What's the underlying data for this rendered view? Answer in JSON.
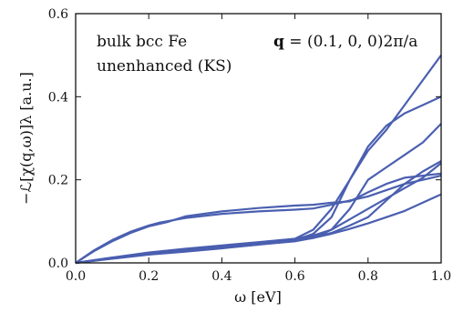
{
  "chart_data": {
    "type": "line",
    "xlabel": "ω [eV]",
    "ylabel": "−ℒ[χ(q,ω)]λ [a.u.]",
    "xlim": [
      0.0,
      1.0
    ],
    "ylim": [
      0.0,
      0.6
    ],
    "xticks": [
      "0.0",
      "0.2",
      "0.4",
      "0.6",
      "0.8",
      "1.0"
    ],
    "yticks": [
      "0.0",
      "0.2",
      "0.4",
      "0.6"
    ],
    "grid": false,
    "line_color": "#4a5fb0",
    "annotations": {
      "left_line1": "bulk bcc Fe",
      "left_line2": "unenhanced (KS)",
      "right_bold": "q",
      "right_rest": " = (0.1, 0, 0)2π/a"
    },
    "series": [
      {
        "x": [
          0.0,
          0.05,
          0.1,
          0.15,
          0.2,
          0.23,
          0.3,
          0.4,
          0.5,
          0.6,
          0.65,
          0.7,
          0.75,
          0.8,
          0.85,
          0.9,
          0.95,
          1.0
        ],
        "y": [
          0.0,
          0.03,
          0.055,
          0.075,
          0.09,
          0.097,
          0.108,
          0.118,
          0.124,
          0.128,
          0.131,
          0.14,
          0.15,
          0.16,
          0.175,
          0.19,
          0.2,
          0.21
        ]
      },
      {
        "x": [
          0.0,
          0.05,
          0.1,
          0.15,
          0.2,
          0.25,
          0.3,
          0.4,
          0.5,
          0.6,
          0.65,
          0.7,
          0.75,
          0.8,
          0.85,
          0.9,
          0.95,
          1.0
        ],
        "y": [
          0.0,
          0.028,
          0.052,
          0.072,
          0.088,
          0.098,
          0.112,
          0.124,
          0.132,
          0.138,
          0.14,
          0.145,
          0.148,
          0.17,
          0.19,
          0.205,
          0.21,
          0.215
        ]
      },
      {
        "x": [
          0.0,
          0.1,
          0.2,
          0.3,
          0.4,
          0.5,
          0.6,
          0.65,
          0.7,
          0.75,
          0.8,
          0.85,
          0.9,
          0.95,
          1.0
        ],
        "y": [
          0.0,
          0.01,
          0.02,
          0.027,
          0.035,
          0.044,
          0.055,
          0.07,
          0.11,
          0.2,
          0.27,
          0.32,
          0.38,
          0.44,
          0.5
        ]
      },
      {
        "x": [
          0.0,
          0.1,
          0.2,
          0.3,
          0.4,
          0.5,
          0.6,
          0.65,
          0.7,
          0.75,
          0.8,
          0.85,
          0.9,
          0.95,
          1.0
        ],
        "y": [
          0.0,
          0.012,
          0.022,
          0.03,
          0.038,
          0.046,
          0.058,
          0.08,
          0.13,
          0.2,
          0.28,
          0.33,
          0.36,
          0.38,
          0.4
        ]
      },
      {
        "x": [
          0.0,
          0.1,
          0.2,
          0.3,
          0.4,
          0.5,
          0.6,
          0.65,
          0.7,
          0.75,
          0.8,
          0.85,
          0.9,
          0.95,
          1.0
        ],
        "y": [
          0.0,
          0.011,
          0.021,
          0.029,
          0.036,
          0.044,
          0.052,
          0.06,
          0.08,
          0.13,
          0.2,
          0.23,
          0.26,
          0.29,
          0.335
        ]
      },
      {
        "x": [
          0.0,
          0.1,
          0.2,
          0.3,
          0.4,
          0.5,
          0.6,
          0.65,
          0.7,
          0.75,
          0.8,
          0.85,
          0.9,
          0.95,
          1.0
        ],
        "y": [
          0.0,
          0.013,
          0.025,
          0.034,
          0.042,
          0.05,
          0.058,
          0.066,
          0.08,
          0.105,
          0.13,
          0.155,
          0.18,
          0.205,
          0.24
        ]
      },
      {
        "x": [
          0.0,
          0.1,
          0.2,
          0.3,
          0.4,
          0.5,
          0.6,
          0.65,
          0.7,
          0.75,
          0.8,
          0.85,
          0.9,
          0.95,
          1.0
        ],
        "y": [
          0.0,
          0.012,
          0.023,
          0.031,
          0.039,
          0.047,
          0.055,
          0.062,
          0.072,
          0.09,
          0.11,
          0.15,
          0.19,
          0.22,
          0.245
        ]
      },
      {
        "x": [
          0.0,
          0.1,
          0.2,
          0.3,
          0.4,
          0.5,
          0.6,
          0.65,
          0.7,
          0.75,
          0.8,
          0.85,
          0.9,
          0.95,
          1.0
        ],
        "y": [
          0.0,
          0.012,
          0.022,
          0.03,
          0.038,
          0.046,
          0.054,
          0.06,
          0.07,
          0.082,
          0.095,
          0.11,
          0.125,
          0.145,
          0.165
        ]
      }
    ]
  }
}
